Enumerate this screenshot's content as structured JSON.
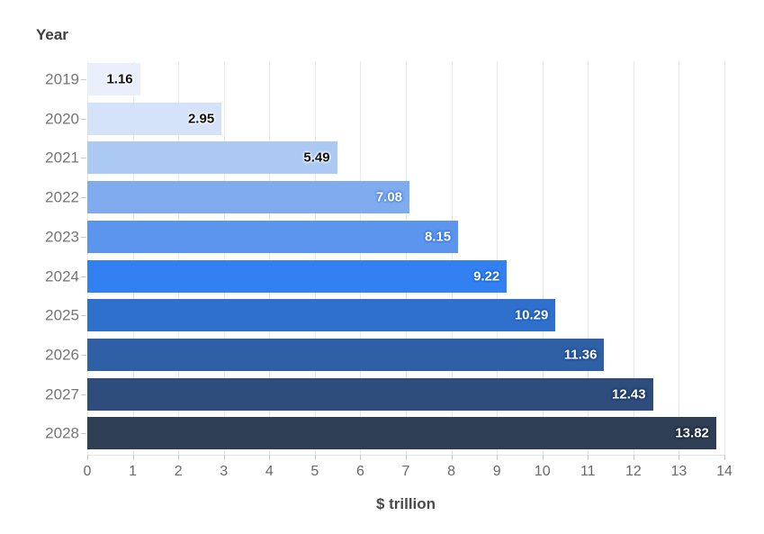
{
  "chart_data": {
    "type": "bar",
    "orientation": "horizontal",
    "title": "Year",
    "xlabel": "$ trillion",
    "ylabel": "Year",
    "categories": [
      "2019",
      "2020",
      "2021",
      "2022",
      "2023",
      "2024",
      "2025",
      "2026",
      "2027",
      "2028"
    ],
    "values": [
      1.16,
      2.95,
      5.49,
      7.08,
      8.15,
      9.22,
      10.29,
      11.36,
      12.43,
      13.82
    ],
    "value_labels": [
      "1.16",
      "2.95",
      "5.49",
      "7.08",
      "8.15",
      "9.22",
      "10.29",
      "11.36",
      "12.43",
      "13.82"
    ],
    "xlim": [
      0,
      14
    ],
    "xticks": [
      0,
      1,
      2,
      3,
      4,
      5,
      6,
      7,
      8,
      9,
      10,
      11,
      12,
      13,
      14
    ],
    "grid": true,
    "legend": false,
    "bar_colors": [
      "#e9f0fc",
      "#d4e3f9",
      "#abc9f2",
      "#7fabef",
      "#5b95ee",
      "#3380f2",
      "#2f70cd",
      "#2f5fa5",
      "#2f4d7c",
      "#2e3e55"
    ],
    "value_label_colors": [
      "#111111",
      "#111111",
      "#111111",
      "#ffffff",
      "#ffffff",
      "#ffffff",
      "#ffffff",
      "#ffffff",
      "#ffffff",
      "#ffffff"
    ],
    "value_label_halo_colors": [
      "rgba(255,255,255,0.9)",
      "rgba(255,255,255,0.9)",
      "rgba(255,255,255,0.9)",
      "#4d86e0",
      "#3a78de",
      "#1668d8",
      "#1c5ab4",
      "#1d4a8c",
      "#1c3a64",
      "#1a2940"
    ]
  },
  "colors": {
    "background": "#ffffff",
    "grid": "#e8e8e8",
    "tick": "#c9c9c9",
    "axis_text": "#696969",
    "year_text": "#757575",
    "title_text": "#3d3d3d",
    "xlabel_text": "#4a4a4a"
  }
}
